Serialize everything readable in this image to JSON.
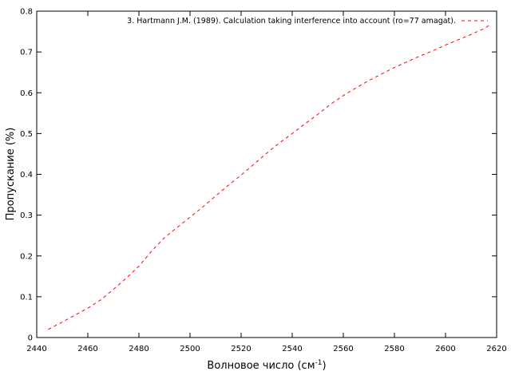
{
  "chart_data": {
    "type": "line",
    "xlabel": "Волновое число (см",
    "xlabel_sup": "-1",
    "xlabel_tail": ")",
    "ylabel": "Пропускание (%)",
    "xlim": [
      2440,
      2620
    ],
    "ylim": [
      0,
      0.8
    ],
    "xticks": [
      "2440",
      "2460",
      "2480",
      "2500",
      "2520",
      "2540",
      "2560",
      "2580",
      "2600",
      "2620"
    ],
    "yticks": [
      "0",
      "0.1",
      "0.2",
      "0.3",
      "0.4",
      "0.5",
      "0.6",
      "0.7",
      "0.8"
    ],
    "grid": false,
    "legend_position": "top-right",
    "series": [
      {
        "name": "3. Hartmann J.M. (1989). Calculation taking interference into account (ro=77 amagat).",
        "color": "#ff0000",
        "line_style": "dashed",
        "x": [
          2444.5,
          2450,
          2455,
          2460,
          2465,
          2470,
          2475,
          2480,
          2485,
          2490,
          2495,
          2500,
          2505,
          2510,
          2515,
          2520,
          2525,
          2530,
          2535,
          2540,
          2545,
          2550,
          2555,
          2560,
          2565,
          2570,
          2575,
          2580,
          2585,
          2590,
          2595,
          2600,
          2605,
          2610,
          2615,
          2617
        ],
        "y": [
          0.02,
          0.038,
          0.055,
          0.072,
          0.092,
          0.118,
          0.145,
          0.175,
          0.212,
          0.245,
          0.27,
          0.295,
          0.32,
          0.347,
          0.373,
          0.398,
          0.425,
          0.452,
          0.477,
          0.5,
          0.524,
          0.547,
          0.572,
          0.593,
          0.612,
          0.63,
          0.646,
          0.662,
          0.676,
          0.69,
          0.703,
          0.717,
          0.73,
          0.743,
          0.757,
          0.765
        ]
      }
    ]
  }
}
